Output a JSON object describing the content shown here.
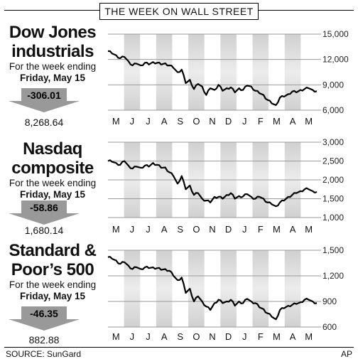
{
  "header": "THE WEEK ON WALL STREET",
  "source": "SOURCE: SunGard",
  "credit": "AP",
  "months": [
    "M",
    "J",
    "J",
    "A",
    "S",
    "O",
    "N",
    "D",
    "J",
    "F",
    "M",
    "A",
    "M"
  ],
  "chart_data": [
    {
      "type": "line",
      "title_line1": "Dow Jones",
      "title_line2": "industrials",
      "subtitle1": "For the week ending",
      "subtitle2": "Friday, May 15",
      "change": "-306.01",
      "close": "8,268.64",
      "yticks": [
        6000,
        9000,
        12000,
        15000
      ],
      "ytick_labels": [
        "6,000",
        "9,000",
        "12,000",
        "15,000"
      ],
      "ylim": [
        6000,
        15000
      ],
      "series": [
        {
          "values": [
            13000,
            12700,
            12500,
            12150,
            12300,
            11800,
            11300,
            11500,
            11300,
            11600,
            11400,
            11700,
            11600,
            11400,
            11550,
            11300,
            11000,
            10500,
            10800,
            9200,
            9600,
            8500,
            9100,
            8800,
            7800,
            8600,
            8400,
            9000,
            8300,
            8600,
            8700,
            8100,
            8600,
            8400,
            8900,
            8800,
            8300,
            8000,
            7800,
            7200,
            6800,
            6600,
            7500,
            7600,
            7900,
            8200,
            8100,
            8400,
            8500,
            8600,
            8400,
            8250
          ]
        }
      ]
    },
    {
      "type": "line",
      "title_line1": "Nasdaq",
      "title_line2": "composite",
      "subtitle1": "For the week ending",
      "subtitle2": "Friday, May 15",
      "change": "-58.86",
      "close": "1,680.14",
      "yticks": [
        1000,
        1500,
        2000,
        2500,
        3000
      ],
      "ytick_labels": [
        "1,000",
        "1,500",
        "2,000",
        "2,500",
        "3,000"
      ],
      "ylim": [
        1000,
        3000
      ],
      "series": [
        {
          "values": [
            2500,
            2480,
            2450,
            2400,
            2500,
            2380,
            2300,
            2350,
            2320,
            2380,
            2350,
            2450,
            2400,
            2320,
            2330,
            2200,
            2100,
            1900,
            2100,
            1750,
            1850,
            1600,
            1650,
            1500,
            1450,
            1400,
            1550,
            1550,
            1500,
            1600,
            1650,
            1500,
            1570,
            1560,
            1620,
            1550,
            1500,
            1550,
            1500,
            1400,
            1350,
            1300,
            1400,
            1450,
            1550,
            1600,
            1650,
            1700,
            1750,
            1750,
            1700,
            1680
          ]
        }
      ]
    },
    {
      "type": "line",
      "title_line1": "Standard &",
      "title_line2": "Poor’s 500",
      "subtitle1": "For the week ending",
      "subtitle2": "Friday, May 15",
      "change": "-46.35",
      "close": "882.88",
      "yticks": [
        600,
        900,
        1200,
        1500
      ],
      "ytick_labels": [
        "600",
        "900",
        "1,200",
        "1,500"
      ],
      "ylim": [
        600,
        1500
      ],
      "series": [
        {
          "values": [
            1420,
            1400,
            1380,
            1340,
            1360,
            1320,
            1280,
            1300,
            1280,
            1300,
            1290,
            1300,
            1290,
            1270,
            1280,
            1260,
            1200,
            1150,
            1180,
            1000,
            1050,
            900,
            960,
            900,
            840,
            800,
            880,
            920,
            880,
            900,
            920,
            850,
            900,
            880,
            930,
            900,
            880,
            830,
            810,
            760,
            720,
            690,
            800,
            820,
            850,
            860,
            870,
            890,
            920,
            920,
            900,
            880
          ]
        }
      ]
    }
  ]
}
